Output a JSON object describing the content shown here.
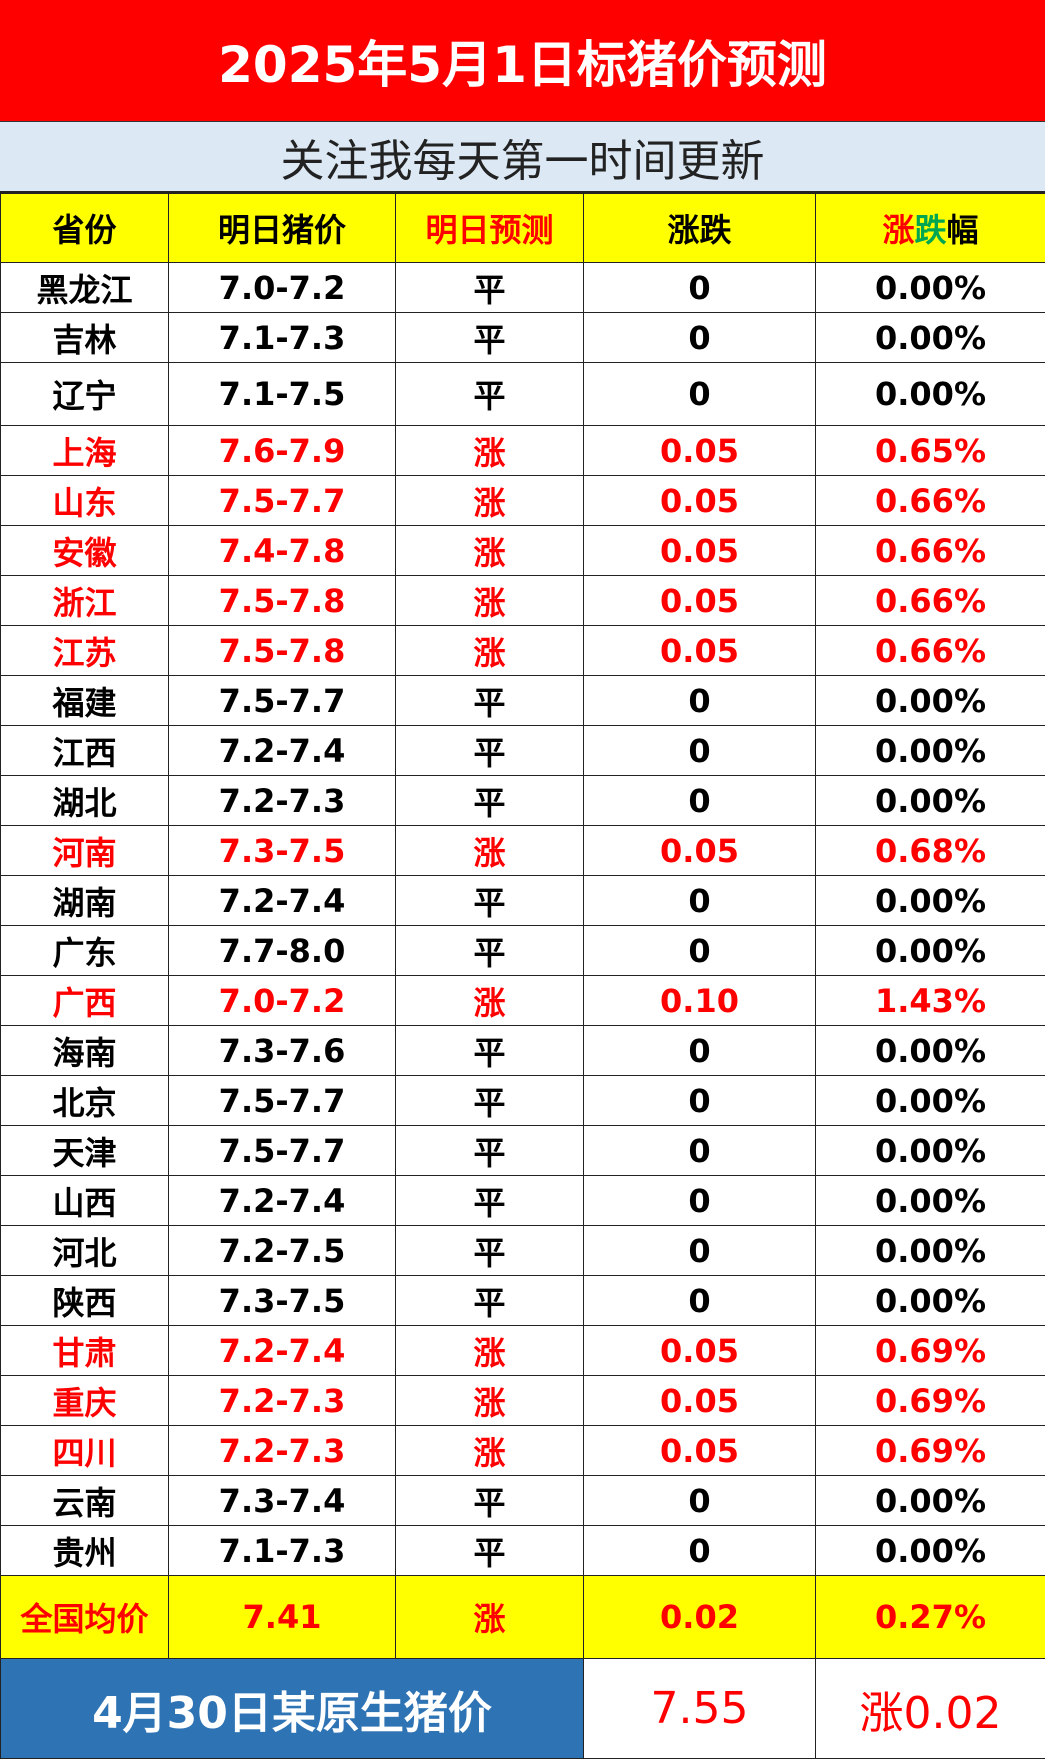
{
  "title": "2025年5月1日标猪价预测",
  "subtitle": "关注我每天第一时间更新",
  "headers": [
    "省份",
    "明日猪价",
    "明日预测",
    "涨跌"
  ],
  "header_change_pct": {
    "part1": "涨",
    "part2": "跌",
    "part3": "幅"
  },
  "colors": {
    "title_bg": "#ff0000",
    "header_bg": "#ffff00",
    "up": "#ff0000",
    "footer_bg": "#2e74b5",
    "subtitle_bg": "#dce9f5"
  },
  "rows": [
    {
      "province": "黑龙江",
      "price": "7.0-7.2",
      "forecast": "平",
      "change": "0",
      "pct": "0.00%",
      "up": false
    },
    {
      "province": "吉林",
      "price": "7.1-7.3",
      "forecast": "平",
      "change": "0",
      "pct": "0.00%",
      "up": false
    },
    {
      "province": "辽宁",
      "price": "7.1-7.5",
      "forecast": "平",
      "change": "0",
      "pct": "0.00%",
      "up": false
    },
    {
      "province": "上海",
      "price": "7.6-7.9",
      "forecast": "涨",
      "change": "0.05",
      "pct": "0.65%",
      "up": true
    },
    {
      "province": "山东",
      "price": "7.5-7.7",
      "forecast": "涨",
      "change": "0.05",
      "pct": "0.66%",
      "up": true
    },
    {
      "province": "安徽",
      "price": "7.4-7.8",
      "forecast": "涨",
      "change": "0.05",
      "pct": "0.66%",
      "up": true
    },
    {
      "province": "浙江",
      "price": "7.5-7.8",
      "forecast": "涨",
      "change": "0.05",
      "pct": "0.66%",
      "up": true
    },
    {
      "province": "江苏",
      "price": "7.5-7.8",
      "forecast": "涨",
      "change": "0.05",
      "pct": "0.66%",
      "up": true
    },
    {
      "province": "福建",
      "price": "7.5-7.7",
      "forecast": "平",
      "change": "0",
      "pct": "0.00%",
      "up": false
    },
    {
      "province": "江西",
      "price": "7.2-7.4",
      "forecast": "平",
      "change": "0",
      "pct": "0.00%",
      "up": false
    },
    {
      "province": "湖北",
      "price": "7.2-7.3",
      "forecast": "平",
      "change": "0",
      "pct": "0.00%",
      "up": false
    },
    {
      "province": "河南",
      "price": "7.3-7.5",
      "forecast": "涨",
      "change": "0.05",
      "pct": "0.68%",
      "up": true
    },
    {
      "province": "湖南",
      "price": "7.2-7.4",
      "forecast": "平",
      "change": "0",
      "pct": "0.00%",
      "up": false
    },
    {
      "province": "广东",
      "price": "7.7-8.0",
      "forecast": "平",
      "change": "0",
      "pct": "0.00%",
      "up": false
    },
    {
      "province": "广西",
      "price": "7.0-7.2",
      "forecast": "涨",
      "change": "0.10",
      "pct": "1.43%",
      "up": true
    },
    {
      "province": "海南",
      "price": "7.3-7.6",
      "forecast": "平",
      "change": "0",
      "pct": "0.00%",
      "up": false
    },
    {
      "province": "北京",
      "price": "7.5-7.7",
      "forecast": "平",
      "change": "0",
      "pct": "0.00%",
      "up": false
    },
    {
      "province": "天津",
      "price": "7.5-7.7",
      "forecast": "平",
      "change": "0",
      "pct": "0.00%",
      "up": false
    },
    {
      "province": "山西",
      "price": "7.2-7.4",
      "forecast": "平",
      "change": "0",
      "pct": "0.00%",
      "up": false
    },
    {
      "province": "河北",
      "price": "7.2-7.5",
      "forecast": "平",
      "change": "0",
      "pct": "0.00%",
      "up": false
    },
    {
      "province": "陕西",
      "price": "7.3-7.5",
      "forecast": "平",
      "change": "0",
      "pct": "0.00%",
      "up": false
    },
    {
      "province": "甘肃",
      "price": "7.2-7.4",
      "forecast": "涨",
      "change": "0.05",
      "pct": "0.69%",
      "up": true
    },
    {
      "province": "重庆",
      "price": "7.2-7.3",
      "forecast": "涨",
      "change": "0.05",
      "pct": "0.69%",
      "up": true
    },
    {
      "province": "四川",
      "price": "7.2-7.3",
      "forecast": "涨",
      "change": "0.05",
      "pct": "0.69%",
      "up": true
    },
    {
      "province": "云南",
      "price": "7.3-7.4",
      "forecast": "平",
      "change": "0",
      "pct": "0.00%",
      "up": false
    },
    {
      "province": "贵州",
      "price": "7.1-7.3",
      "forecast": "平",
      "change": "0",
      "pct": "0.00%",
      "up": false
    }
  ],
  "national": {
    "label": "全国均价",
    "price": "7.41",
    "forecast": "涨",
    "change": "0.02",
    "pct": "0.27%"
  },
  "footer": {
    "label": "4月30日某原生猪价",
    "price": "7.55",
    "change": "涨0.02"
  }
}
